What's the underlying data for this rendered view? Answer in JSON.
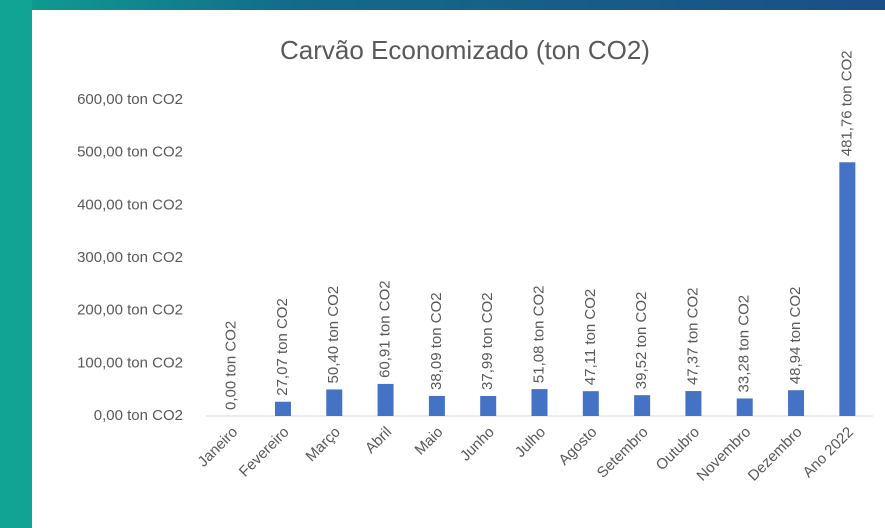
{
  "chart_data": {
    "type": "bar",
    "title": "Carvão Economizado (ton CO2)",
    "categories": [
      "Janeiro",
      "Fevereiro",
      "Março",
      "Abril",
      "Maio",
      "Junho",
      "Julho",
      "Agosto",
      "Setembro",
      "Outubro",
      "Novembro",
      "Dezembro",
      "Ano 2022"
    ],
    "values": [
      0,
      27.07,
      50.4,
      60.91,
      38.09,
      37.99,
      51.08,
      47.11,
      39.52,
      47.37,
      33.28,
      48.94,
      481.76
    ],
    "value_labels": [
      "0,00 ton CO2",
      "27,07 ton CO2",
      "50,40 ton CO2",
      "60,91 ton CO2",
      "38,09 ton CO2",
      "37,99 ton CO2",
      "51,08 ton CO2",
      "47,11 ton CO2",
      "39,52 ton CO2",
      "47,37 ton CO2",
      "33,28 ton CO2",
      "48,94 ton CO2",
      "481,76 ton CO2"
    ],
    "color": "#4472c4",
    "ylim": [
      0,
      600
    ],
    "yticks": [
      {
        "value": 0,
        "label": "0,00 ton CO2"
      },
      {
        "value": 100,
        "label": "100,00 ton CO2"
      },
      {
        "value": 200,
        "label": "200,00 ton CO2"
      },
      {
        "value": 300,
        "label": "300,00 ton CO2"
      },
      {
        "value": 400,
        "label": "400,00 ton CO2"
      },
      {
        "value": 500,
        "label": "500,00 ton CO2"
      },
      {
        "value": 600,
        "label": "600,00 ton CO2"
      }
    ],
    "grid": false
  }
}
